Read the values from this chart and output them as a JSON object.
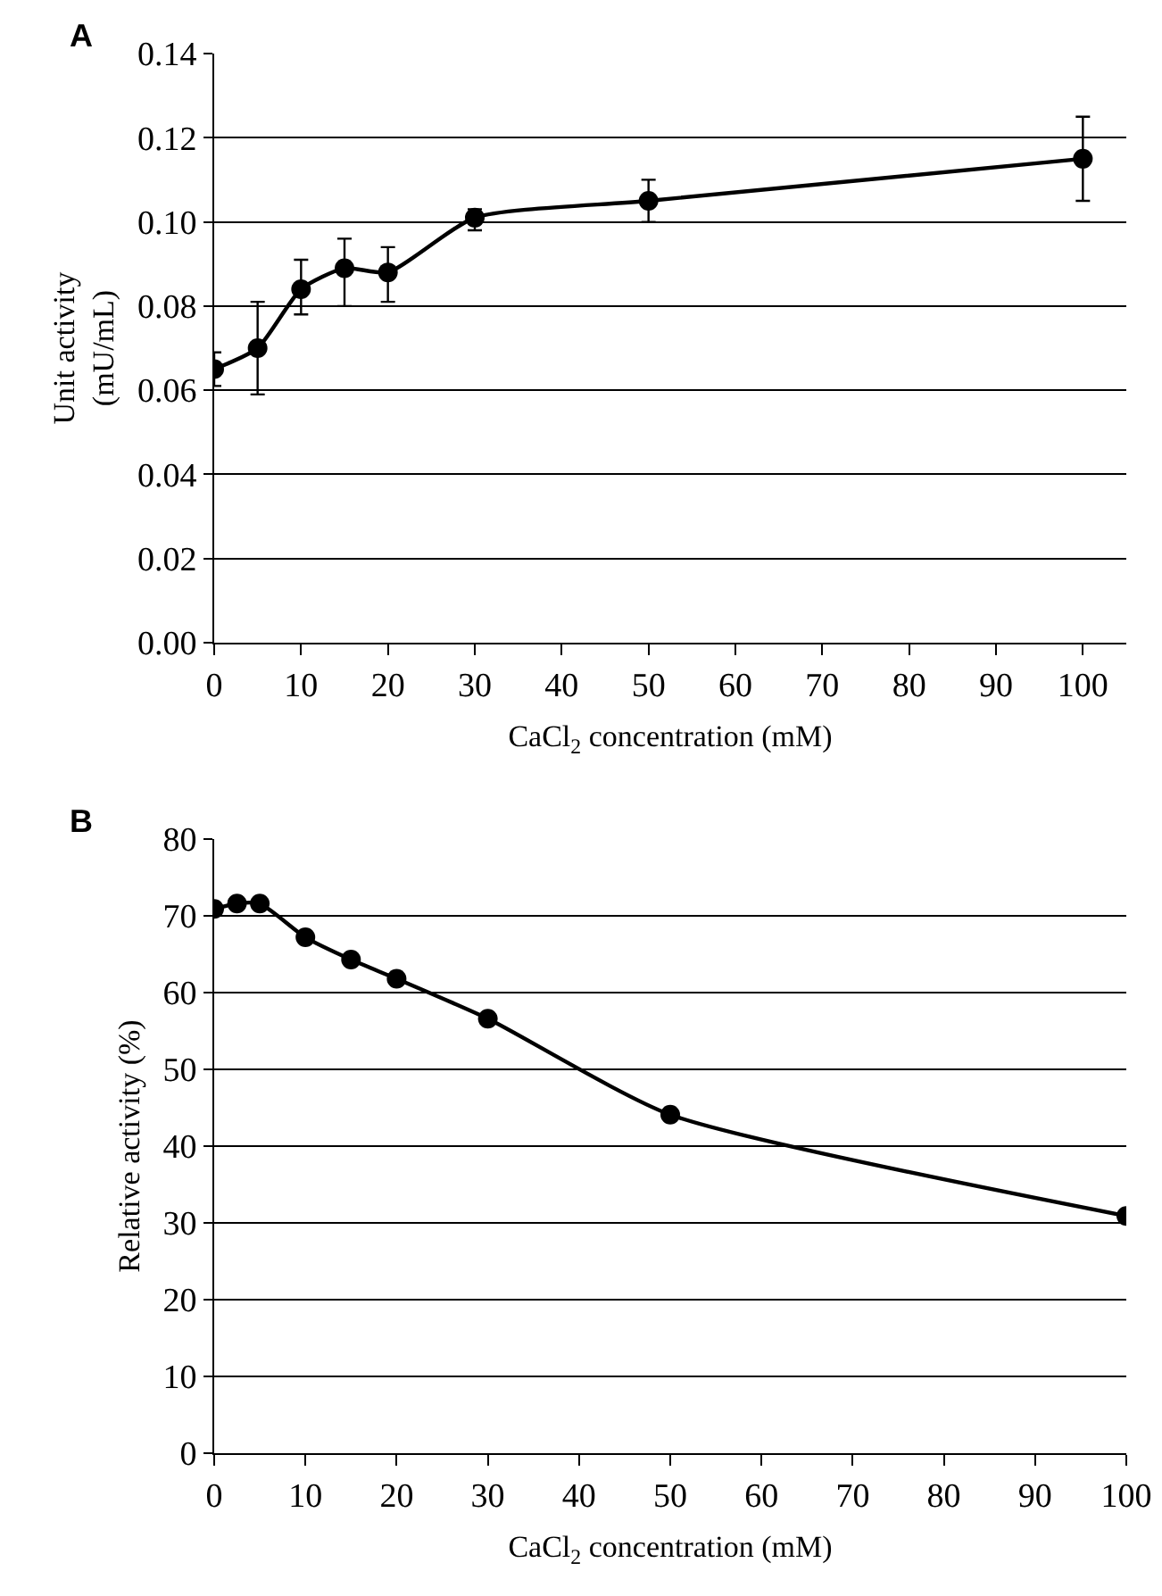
{
  "chart_data": [
    {
      "type": "line",
      "title": "A",
      "xlabel": "CaCl$_{2}$ concentration (mM)",
      "ylabel": "Unit activity\n(mU/mL)",
      "x": [
        0,
        5,
        10,
        15,
        20,
        30,
        50,
        100
      ],
      "series": [
        {
          "color": "#000000",
          "values": [
            0.065,
            0.07,
            0.084,
            0.089,
            0.088,
            0.101,
            0.105,
            0.115
          ],
          "errors": [
            [
              0.061,
              0.069
            ],
            [
              0.059,
              0.081
            ],
            [
              0.078,
              0.091
            ],
            [
              0.08,
              0.096
            ],
            [
              0.081,
              0.094
            ],
            [
              0.098,
              0.103
            ],
            [
              0.1,
              0.11
            ],
            [
              0.105,
              0.125
            ]
          ]
        }
      ],
      "xlim": [
        0,
        105
      ],
      "xticks": [
        0,
        10,
        20,
        30,
        40,
        50,
        60,
        70,
        80,
        90,
        100
      ],
      "ylim": [
        0,
        0.14
      ],
      "yticks": [
        {
          "value": 0,
          "label": "0.00"
        },
        {
          "value": 0.02,
          "label": "0.02"
        },
        {
          "value": 0.04,
          "label": "0.04"
        },
        {
          "value": 0.06,
          "label": "0.06"
        },
        {
          "value": 0.08,
          "label": "0.08"
        },
        {
          "value": 0.1,
          "label": "0.10"
        },
        {
          "value": 0.12,
          "label": "0.12"
        },
        {
          "value": 0.14,
          "label": "0.14"
        }
      ],
      "grid": "y",
      "marker": "circle",
      "line_style": "solid"
    },
    {
      "type": "line",
      "title": "B",
      "xlabel": "CaCl$_{2}$ concentration (mM)",
      "ylabel": "Relative activity (%)",
      "x": [
        0,
        2.5,
        5,
        10,
        15,
        20,
        30,
        50,
        100
      ],
      "series": [
        {
          "color": "#000000",
          "values": [
            70.9,
            71.6,
            71.6,
            67.2,
            64.3,
            61.8,
            56.6,
            44.1,
            30.9
          ]
        }
      ],
      "xlim": [
        0,
        100
      ],
      "xticks": [
        0,
        10,
        20,
        30,
        40,
        50,
        60,
        70,
        80,
        90,
        100
      ],
      "ylim": [
        0,
        80
      ],
      "yticks": [
        0,
        10,
        20,
        30,
        40,
        50,
        60,
        70,
        80
      ],
      "grid": "y",
      "marker": "circle",
      "line_style": "solid"
    }
  ]
}
